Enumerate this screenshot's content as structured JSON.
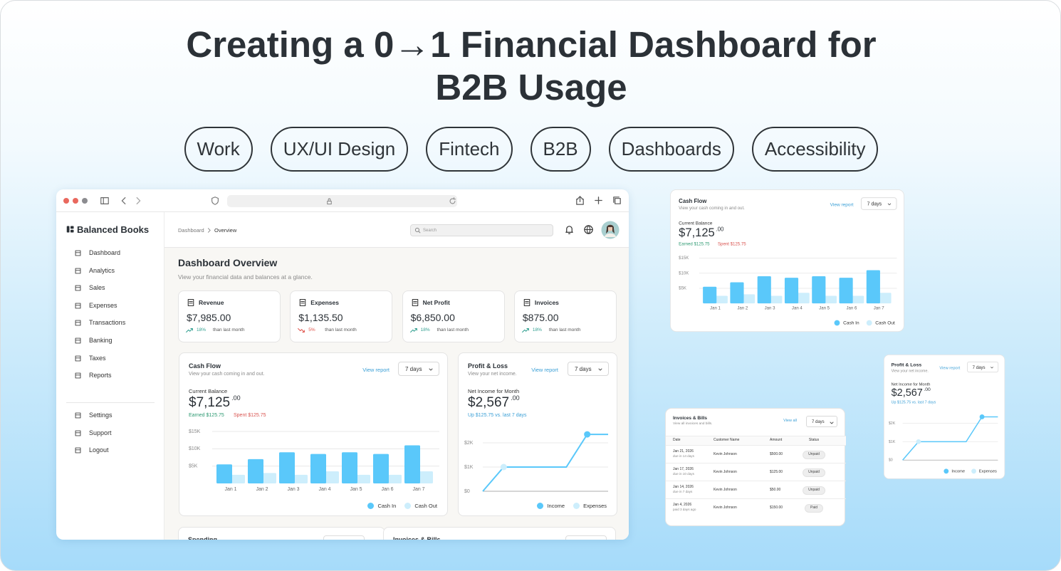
{
  "title": [
    "Creating a 0→1 Financial Dashboard for",
    "B2B Usage"
  ],
  "tags": [
    "Work",
    "UX/UI Design",
    "Fintech",
    "B2B",
    "Dashboards",
    "Accessibility"
  ],
  "app": {
    "brand": "Balanced Books",
    "nav": [
      "Dashboard",
      "Analytics",
      "Sales",
      "Expenses",
      "Transactions",
      "Banking",
      "Taxes",
      "Reports"
    ],
    "nav_bottom": [
      "Settings",
      "Support",
      "Logout"
    ],
    "breadcrumb": [
      "Dashboard",
      "Overview"
    ],
    "search_placeholder": "Search",
    "page_title": "Dashboard Overview",
    "page_subtitle": "View your financial data and balances at a glance.",
    "stats": [
      {
        "label": "Revenue",
        "value": "$7,985.00",
        "change": "18%",
        "trend": "up",
        "note": "than last month"
      },
      {
        "label": "Expenses",
        "value": "$1,135.50",
        "change": "5%",
        "trend": "down",
        "note": "than last month"
      },
      {
        "label": "Net Profit",
        "value": "$6,850.00",
        "change": "18%",
        "trend": "up",
        "note": "than last month"
      },
      {
        "label": "Invoices",
        "value": "$875.00",
        "change": "18%",
        "trend": "up",
        "note": "than last month"
      }
    ],
    "lower_cards": [
      "Spending",
      "Invoices & Bills"
    ]
  },
  "chart_data": [
    {
      "type": "bar",
      "title": "Cash Flow",
      "subtitle": "View your cash coming in and out.",
      "link": "View report",
      "period": "7 days",
      "balance_label": "Current Balance",
      "balance": "$7,125",
      "balance_cents": ".00",
      "earned": "Earned $125.75",
      "spent": "Spent $125.75",
      "categories": [
        "Jan 1",
        "Jan 2",
        "Jan 3",
        "Jan 4",
        "Jan 5",
        "Jan 6",
        "Jan 7"
      ],
      "series": [
        {
          "name": "Cash In",
          "color": "#5ac8fa",
          "values": [
            5500,
            7000,
            9000,
            8500,
            9000,
            8500,
            11000
          ]
        },
        {
          "name": "Cash Out",
          "color": "#cdeefc",
          "values": [
            2500,
            3000,
            2500,
            3500,
            2500,
            2500,
            3500
          ]
        }
      ],
      "ylim": [
        0,
        15000
      ],
      "yticks": [
        {
          "value": 5000,
          "label": "$5K"
        },
        {
          "value": 10000,
          "label": "$10K"
        },
        {
          "value": 15000,
          "label": "$15K"
        }
      ],
      "grid": true,
      "legend": "bottom-right"
    },
    {
      "type": "line",
      "title": "Profit & Loss",
      "subtitle": "View your net income.",
      "link": "View report",
      "period": "7 days",
      "balance_label": "Net Income for Month",
      "balance": "$2,567",
      "balance_cents": ".00",
      "change": "Up $125.75 vs. last 7 days",
      "categories": [
        null,
        null,
        null,
        null,
        null,
        null,
        null
      ],
      "series": [
        {
          "name": "Income",
          "color": "#5ac8fa",
          "values": [
            0,
            1000,
            1000,
            1000,
            1000,
            2350,
            2350
          ]
        },
        {
          "name": "Expenses",
          "color": "#cdeefc",
          "values": [
            null,
            null,
            null,
            null,
            null,
            null,
            null
          ]
        }
      ],
      "ylim": [
        0,
        2500
      ],
      "yticks": [
        {
          "value": 0,
          "label": "$0"
        },
        {
          "value": 1000,
          "label": "$1K"
        },
        {
          "value": 2000,
          "label": "$2K"
        }
      ],
      "grid": true,
      "legend": "bottom-right"
    }
  ],
  "invoices": {
    "title": "Invoices & Bills",
    "subtitle": "View all invoices and bills.",
    "link": "View all",
    "period": "7 days",
    "columns": [
      "Date",
      "Customer Name",
      "Amount",
      "Status"
    ],
    "rows": [
      [
        "Jan 21, 2026",
        "due in 14 days",
        "Kevin Johnson",
        "$500.00",
        "Unpaid"
      ],
      [
        "Jan 17, 2026",
        "due in 10 days",
        "Kevin Johnson",
        "$125.00",
        "Unpaid"
      ],
      [
        "Jan 14, 2026",
        "due in 7 days",
        "Kevin Johnson",
        "$50.00",
        "Unpaid"
      ],
      [
        "Jan 4, 2026",
        "paid 3 days ago",
        "Kevin Johnson",
        "$150.00",
        "Paid"
      ]
    ]
  }
}
